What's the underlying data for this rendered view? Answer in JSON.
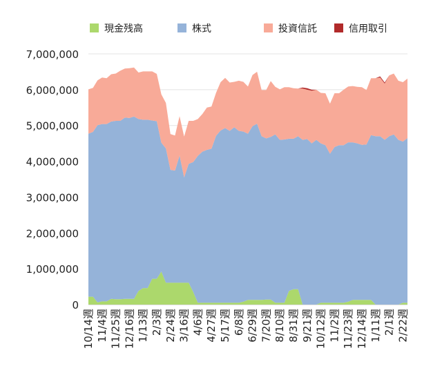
{
  "chart_data": {
    "type": "area",
    "stacked": true,
    "legend_position": "top",
    "ylim": [
      0,
      7000000
    ],
    "yticks": [
      0,
      1000000,
      2000000,
      3000000,
      4000000,
      5000000,
      6000000,
      7000000
    ],
    "ytick_labels": [
      "0",
      "1,000,000",
      "2,000,000",
      "3,000,000",
      "4,000,000",
      "5,000,000",
      "6,000,000",
      "7,000,000"
    ],
    "grid": true,
    "x_labels": [
      "10/14週",
      "11/4週",
      "11/25週",
      "12/16週",
      "1/13週",
      "2/3週",
      "2/24週",
      "3/16週",
      "4/6週",
      "4/27週",
      "5/17週",
      "6/8週",
      "6/29週",
      "7/20週",
      "8/10週",
      "8/31週",
      "9/21週",
      "10/12週",
      "11/2週",
      "11/23週",
      "12/14週",
      "1/11週",
      "2/1週",
      "2/22週"
    ],
    "x_label_positions": [
      0,
      3,
      6,
      9,
      12,
      15,
      18,
      21,
      24,
      27,
      30,
      33,
      36,
      39,
      42,
      45,
      48,
      51,
      54,
      57,
      60,
      63,
      66,
      69
    ],
    "num_points": 71,
    "series": [
      {
        "name": "現金残高",
        "color": "#acd86c",
        "values": [
          220000,
          220000,
          60000,
          90000,
          90000,
          160000,
          150000,
          150000,
          160000,
          160000,
          160000,
          380000,
          460000,
          460000,
          720000,
          720000,
          920000,
          610000,
          610000,
          610000,
          610000,
          610000,
          610000,
          350000,
          50000,
          50000,
          50000,
          50000,
          50000,
          50000,
          50000,
          50000,
          50000,
          50000,
          80000,
          130000,
          130000,
          130000,
          130000,
          140000,
          140000,
          50000,
          50000,
          50000,
          380000,
          430000,
          430000,
          0,
          0,
          0,
          0,
          50000,
          50000,
          50000,
          50000,
          50000,
          50000,
          80000,
          130000,
          130000,
          130000,
          130000,
          130000,
          0,
          0,
          0,
          0,
          0,
          0,
          50000,
          50000
        ]
      },
      {
        "name": "株式",
        "color": "#95b3d9",
        "values": [
          4550000,
          4600000,
          4950000,
          4950000,
          4950000,
          4950000,
          4980000,
          4980000,
          5060000,
          5050000,
          5090000,
          4800000,
          4700000,
          4700000,
          4420000,
          4400000,
          3600000,
          3750000,
          3150000,
          3130000,
          3550000,
          2940000,
          3320000,
          3630000,
          4100000,
          4220000,
          4270000,
          4300000,
          4660000,
          4810000,
          4880000,
          4800000,
          4900000,
          4800000,
          4750000,
          4640000,
          4850000,
          4920000,
          4570000,
          4500000,
          4540000,
          4700000,
          4550000,
          4560000,
          4250000,
          4200000,
          4270000,
          4600000,
          4620000,
          4500000,
          4600000,
          4450000,
          4400000,
          4160000,
          4350000,
          4400000,
          4400000,
          4450000,
          4400000,
          4370000,
          4330000,
          4340000,
          4600000,
          4700000,
          4700000,
          4600000,
          4700000,
          4750000,
          4600000,
          4500000,
          4600000
        ]
      },
      {
        "name": "投資信託",
        "color": "#f8aa98",
        "values": [
          1240000,
          1230000,
          1250000,
          1300000,
          1280000,
          1320000,
          1320000,
          1400000,
          1370000,
          1390000,
          1370000,
          1300000,
          1350000,
          1350000,
          1370000,
          1320000,
          1350000,
          1270000,
          1000000,
          980000,
          1100000,
          1140000,
          1200000,
          1150000,
          1030000,
          1050000,
          1180000,
          1180000,
          1200000,
          1350000,
          1400000,
          1350000,
          1270000,
          1400000,
          1390000,
          1320000,
          1430000,
          1450000,
          1290000,
          1350000,
          1560000,
          1330000,
          1410000,
          1460000,
          1440000,
          1410000,
          1330000,
          1430000,
          1380000,
          1470000,
          1400000,
          1410000,
          1450000,
          1400000,
          1500000,
          1450000,
          1550000,
          1560000,
          1570000,
          1580000,
          1610000,
          1520000,
          1590000,
          1620000,
          1640000,
          1570000,
          1700000,
          1700000,
          1650000,
          1660000,
          1660000
        ]
      },
      {
        "name": "信用取引",
        "color": "#b12a2a",
        "values": [
          0,
          0,
          0,
          0,
          0,
          0,
          0,
          0,
          0,
          0,
          0,
          0,
          0,
          0,
          0,
          0,
          0,
          0,
          0,
          0,
          0,
          0,
          0,
          0,
          0,
          0,
          0,
          0,
          0,
          0,
          0,
          0,
          0,
          0,
          0,
          0,
          0,
          0,
          0,
          0,
          0,
          0,
          0,
          0,
          0,
          0,
          0,
          30000,
          40000,
          30000,
          0,
          0,
          0,
          0,
          0,
          0,
          0,
          0,
          0,
          0,
          0,
          0,
          0,
          0,
          30000,
          30000,
          0,
          0,
          0,
          0,
          0
        ]
      }
    ]
  }
}
